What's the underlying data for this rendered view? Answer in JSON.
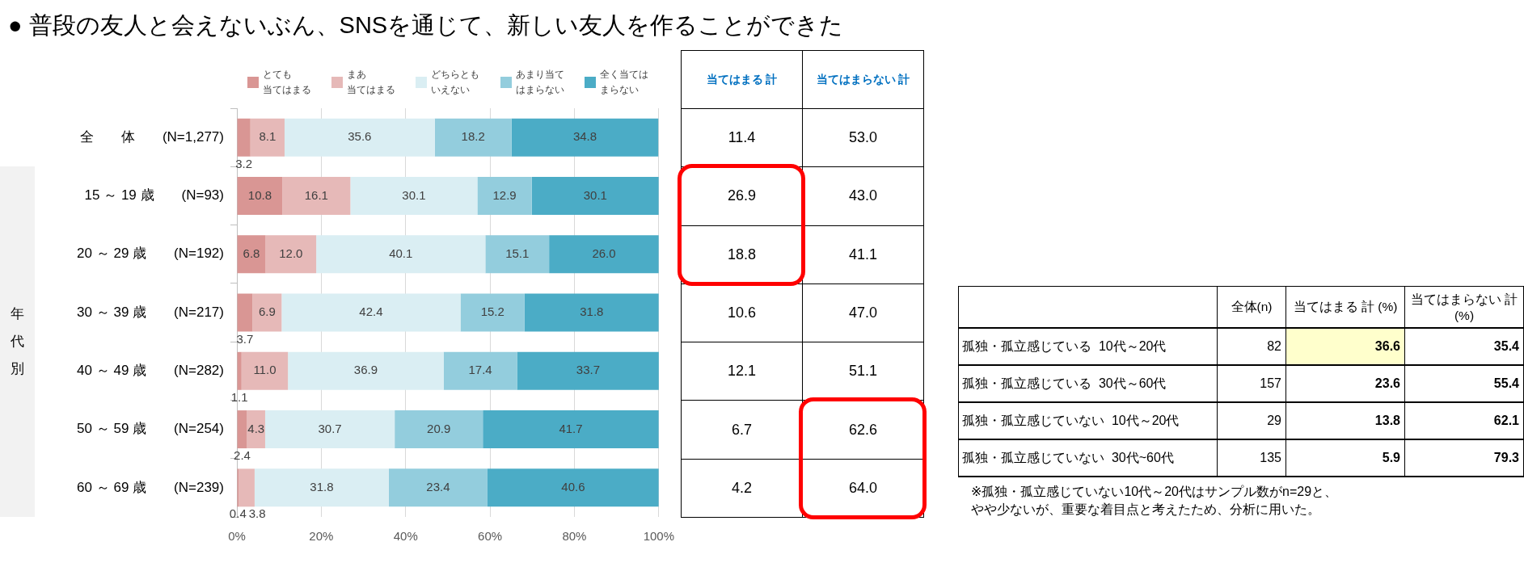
{
  "chart_data": [
    {
      "type": "bar",
      "orientation": "horizontal",
      "stacked": true,
      "title": "● 普段の友人と会えないぶん、SNSを通じて、新しい友人を作ることができた",
      "categories": [
        "全　　体　　(N=1,277)",
        "15 ～ 19 歳　　(N=93)",
        "20 ～ 29 歳　　(N=192)",
        "30 ～ 39 歳　　(N=217)",
        "40 ～ 49 歳　　(N=282)",
        "50 ～ 59 歳　　(N=254)",
        "60 ～ 69 歳　　(N=239)"
      ],
      "series": [
        {
          "name": "とても当てはまる",
          "color": "#d99694",
          "values": [
            3.2,
            10.8,
            6.8,
            3.7,
            1.1,
            2.4,
            0.4
          ],
          "value_labels": [
            "3.2",
            "10.8",
            "6.8",
            "3.7",
            "1.1",
            "2.4",
            "0.4"
          ]
        },
        {
          "name": "まあ当てはまる",
          "color": "#e6b9b8",
          "values": [
            8.1,
            16.1,
            12.0,
            6.9,
            11.0,
            4.3,
            3.8
          ],
          "value_labels": [
            "8.1",
            "16.1",
            "12.0",
            "6.9",
            "11.0",
            "4.3",
            "3.8"
          ]
        },
        {
          "name": "どちらともいえない",
          "color": "#daeef3",
          "values": [
            35.6,
            30.1,
            40.1,
            42.4,
            36.9,
            30.7,
            31.8
          ],
          "value_labels": [
            "35.6",
            "30.1",
            "40.1",
            "42.4",
            "36.9",
            "30.7",
            "31.8"
          ]
        },
        {
          "name": "あまり当てはまらない",
          "color": "#93cddd",
          "values": [
            18.2,
            12.9,
            15.1,
            15.2,
            17.4,
            20.9,
            23.4
          ],
          "value_labels": [
            "18.2",
            "12.9",
            "15.1",
            "15.2",
            "17.4",
            "20.9",
            "23.4"
          ]
        },
        {
          "name": "全く当てはまらない",
          "color": "#4bacc6",
          "values": [
            34.8,
            30.1,
            26.0,
            31.8,
            33.7,
            41.7,
            40.6
          ],
          "value_labels": [
            "34.8",
            "30.1",
            "26.0",
            "31.8",
            "33.7",
            "41.7",
            "40.6"
          ]
        }
      ],
      "xlim": [
        0,
        100
      ],
      "xticks": [
        {
          "value": 0,
          "label": "0%"
        },
        {
          "value": 20,
          "label": "20%"
        },
        {
          "value": 40,
          "label": "40%"
        },
        {
          "value": 60,
          "label": "60%"
        },
        {
          "value": 80,
          "label": "80%"
        },
        {
          "value": 100,
          "label": "100%"
        }
      ],
      "grid": "x",
      "legend": "top",
      "annotations": [
        "年代別"
      ]
    },
    {
      "type": "other",
      "categories": [
        "当てはまる 計",
        "当てはまらない 計"
      ],
      "series": [
        {
          "values": [
            11.4,
            53.0
          ],
          "value_labels": [
            "11.4",
            "53.0"
          ]
        },
        {
          "values": [
            26.9,
            43.0
          ],
          "value_labels": [
            "26.9",
            "43.0"
          ]
        },
        {
          "values": [
            18.8,
            41.1
          ],
          "value_labels": [
            "18.8",
            "41.1"
          ]
        },
        {
          "values": [
            10.6,
            47.0
          ],
          "value_labels": [
            "10.6",
            "47.0"
          ]
        },
        {
          "values": [
            12.1,
            51.1
          ],
          "value_labels": [
            "12.1",
            "51.1"
          ]
        },
        {
          "values": [
            6.7,
            62.6
          ],
          "value_labels": [
            "6.7",
            "62.6"
          ]
        },
        {
          "values": [
            4.2,
            64.0
          ],
          "value_labels": [
            "4.2",
            "64.0"
          ]
        }
      ]
    },
    {
      "type": "other",
      "categories": [
        "孤独・孤立感じている  10代～20代",
        "孤独・孤立感じている  30代～60代",
        "孤独・孤立感じていない  10代～20代",
        "孤独・孤立感じていない  30代~60代"
      ],
      "series": [
        {
          "name": "全体(n)",
          "values": [
            82,
            157,
            29,
            135
          ]
        },
        {
          "name": "当てはまる 計 (%)",
          "values": [
            36.6,
            23.6,
            13.8,
            5.9
          ],
          "colors": [
            "#ffffcc",
            "#ffffff",
            "#ffffff",
            "#ffffff"
          ]
        },
        {
          "name": "当てはまらない 計 (%)",
          "values": [
            35.4,
            55.4,
            62.1,
            79.3
          ]
        }
      ],
      "data_labels": true,
      "annotations": [
        "※孤独・孤立感じていない10代～20代はサンプル数がn=29と、やや少ないが、重要な着目点と考えたため、分析に用いた。"
      ]
    }
  ]
}
